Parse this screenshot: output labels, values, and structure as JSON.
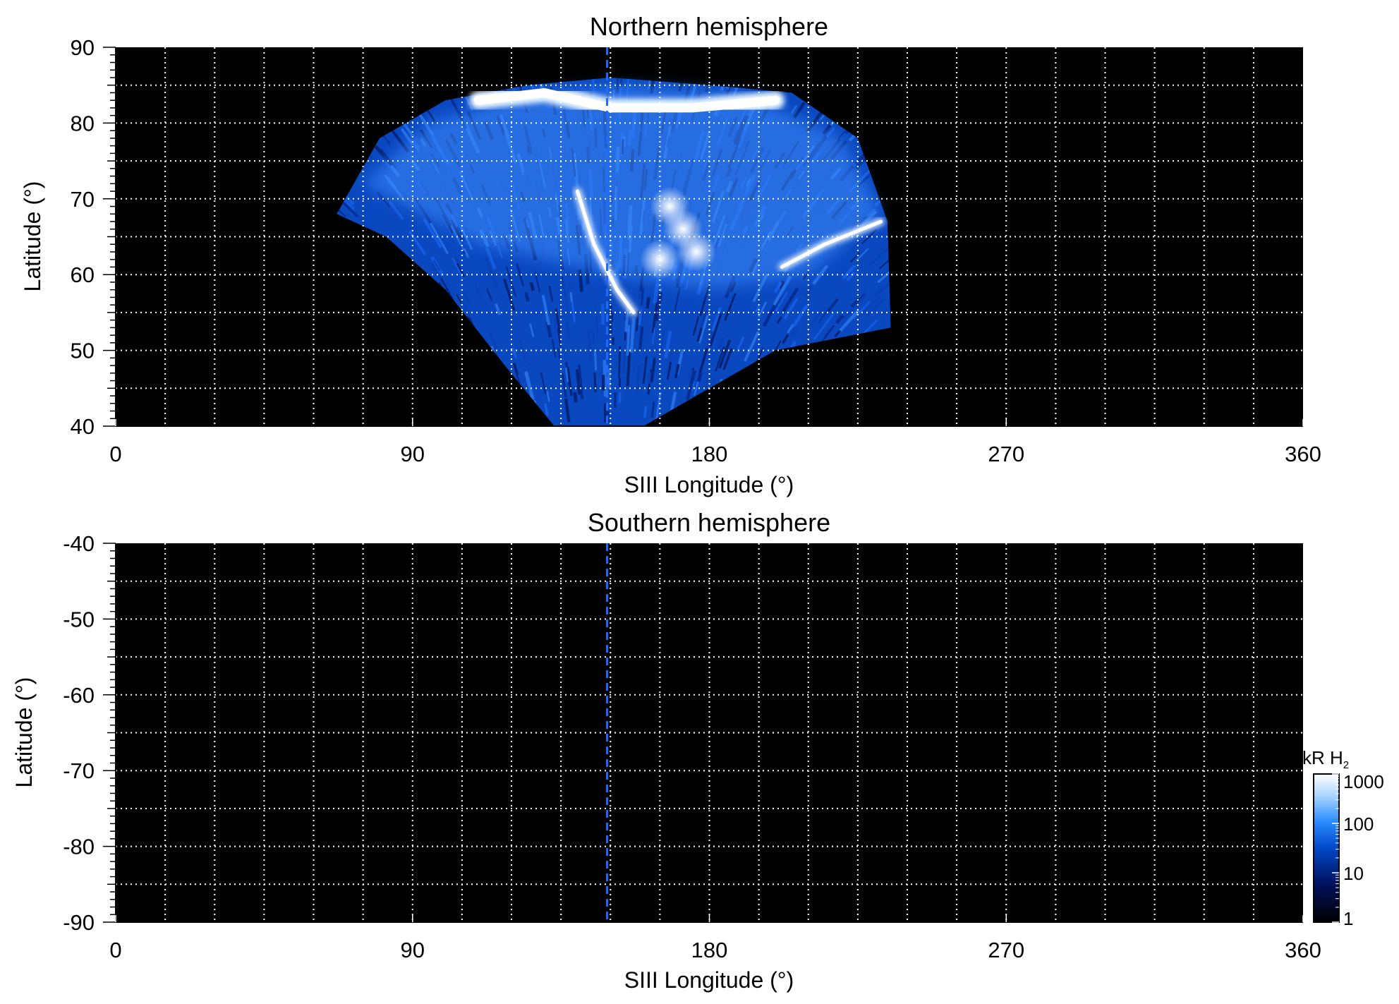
{
  "chart_data": [
    {
      "type": "heatmap",
      "title": "Northern hemisphere",
      "xlabel": "SIII Longitude (°)",
      "ylabel": "Latitude (°)",
      "xlim": [
        0,
        360
      ],
      "ylim": [
        40,
        90
      ],
      "x_ticks": [
        "0",
        "90",
        "180",
        "270",
        "360"
      ],
      "y_ticks": [
        "40",
        "50",
        "60",
        "70",
        "80",
        "90"
      ],
      "grid": true,
      "grid_style": "white dotted, every 15° longitude and 5° latitude",
      "colormap": [
        "#000000",
        "#00105a",
        "#0048c8",
        "#2a8cff",
        "#a8d4ff",
        "#ffffff"
      ],
      "emission_region": {
        "description_points": [
          {
            "lon": 67,
            "lat": 68
          },
          {
            "lon": 80,
            "lat": 78
          },
          {
            "lon": 100,
            "lat": 83
          },
          {
            "lon": 125,
            "lat": 85
          },
          {
            "lon": 150,
            "lat": 86
          },
          {
            "lon": 180,
            "lat": 85
          },
          {
            "lon": 205,
            "lat": 84
          },
          {
            "lon": 225,
            "lat": 78
          },
          {
            "lon": 234,
            "lat": 67
          },
          {
            "lon": 235,
            "lat": 53
          },
          {
            "lon": 200,
            "lat": 50
          },
          {
            "lon": 180,
            "lat": 45
          },
          {
            "lon": 160,
            "lat": 40
          },
          {
            "lon": 133,
            "lat": 40
          },
          {
            "lon": 118,
            "lat": 48
          },
          {
            "lon": 100,
            "lat": 58
          },
          {
            "lon": 82,
            "lat": 65
          }
        ],
        "main_oval_arcs": [
          {
            "name": "dawn arc",
            "points": [
              {
                "lon": 140,
                "lat": 71
              },
              {
                "lon": 145,
                "lat": 64
              },
              {
                "lon": 152,
                "lat": 58
              },
              {
                "lon": 157,
                "lat": 55
              }
            ]
          },
          {
            "name": "dusk arc",
            "points": [
              {
                "lon": 202,
                "lat": 61
              },
              {
                "lon": 215,
                "lat": 64
              },
              {
                "lon": 232,
                "lat": 67
              }
            ]
          },
          {
            "name": "polar cap",
            "points": [
              {
                "lon": 110,
                "lat": 83
              },
              {
                "lon": 130,
                "lat": 84
              },
              {
                "lon": 150,
                "lat": 82
              },
              {
                "lon": 175,
                "lat": 82
              },
              {
                "lon": 200,
                "lat": 83
              }
            ]
          }
        ],
        "polar_spots": [
          {
            "lon": 168,
            "lat": 69
          },
          {
            "lon": 172,
            "lat": 66
          },
          {
            "lon": 176,
            "lat": 63
          },
          {
            "lon": 165,
            "lat": 62
          }
        ]
      },
      "marker_line": {
        "lon": 149,
        "style": "dashed",
        "color": "#1e6cff"
      }
    },
    {
      "type": "heatmap",
      "title": "Southern hemisphere",
      "xlabel": "SIII Longitude (°)",
      "ylabel": "Latitude (°)",
      "xlim": [
        0,
        360
      ],
      "ylim": [
        -90,
        -40
      ],
      "x_ticks": [
        "0",
        "90",
        "180",
        "270",
        "360"
      ],
      "y_ticks": [
        "-40",
        "-50",
        "-60",
        "-70",
        "-80",
        "-90"
      ],
      "grid": true,
      "marker_line": {
        "lon": 149,
        "style": "dashed",
        "color": "#1e6cff"
      }
    }
  ],
  "colorbar": {
    "label_main": "kR H",
    "label_sub": "2",
    "scale": "log",
    "range": [
      1,
      1000
    ],
    "ticks": [
      "1",
      "10",
      "100",
      "1000"
    ]
  }
}
